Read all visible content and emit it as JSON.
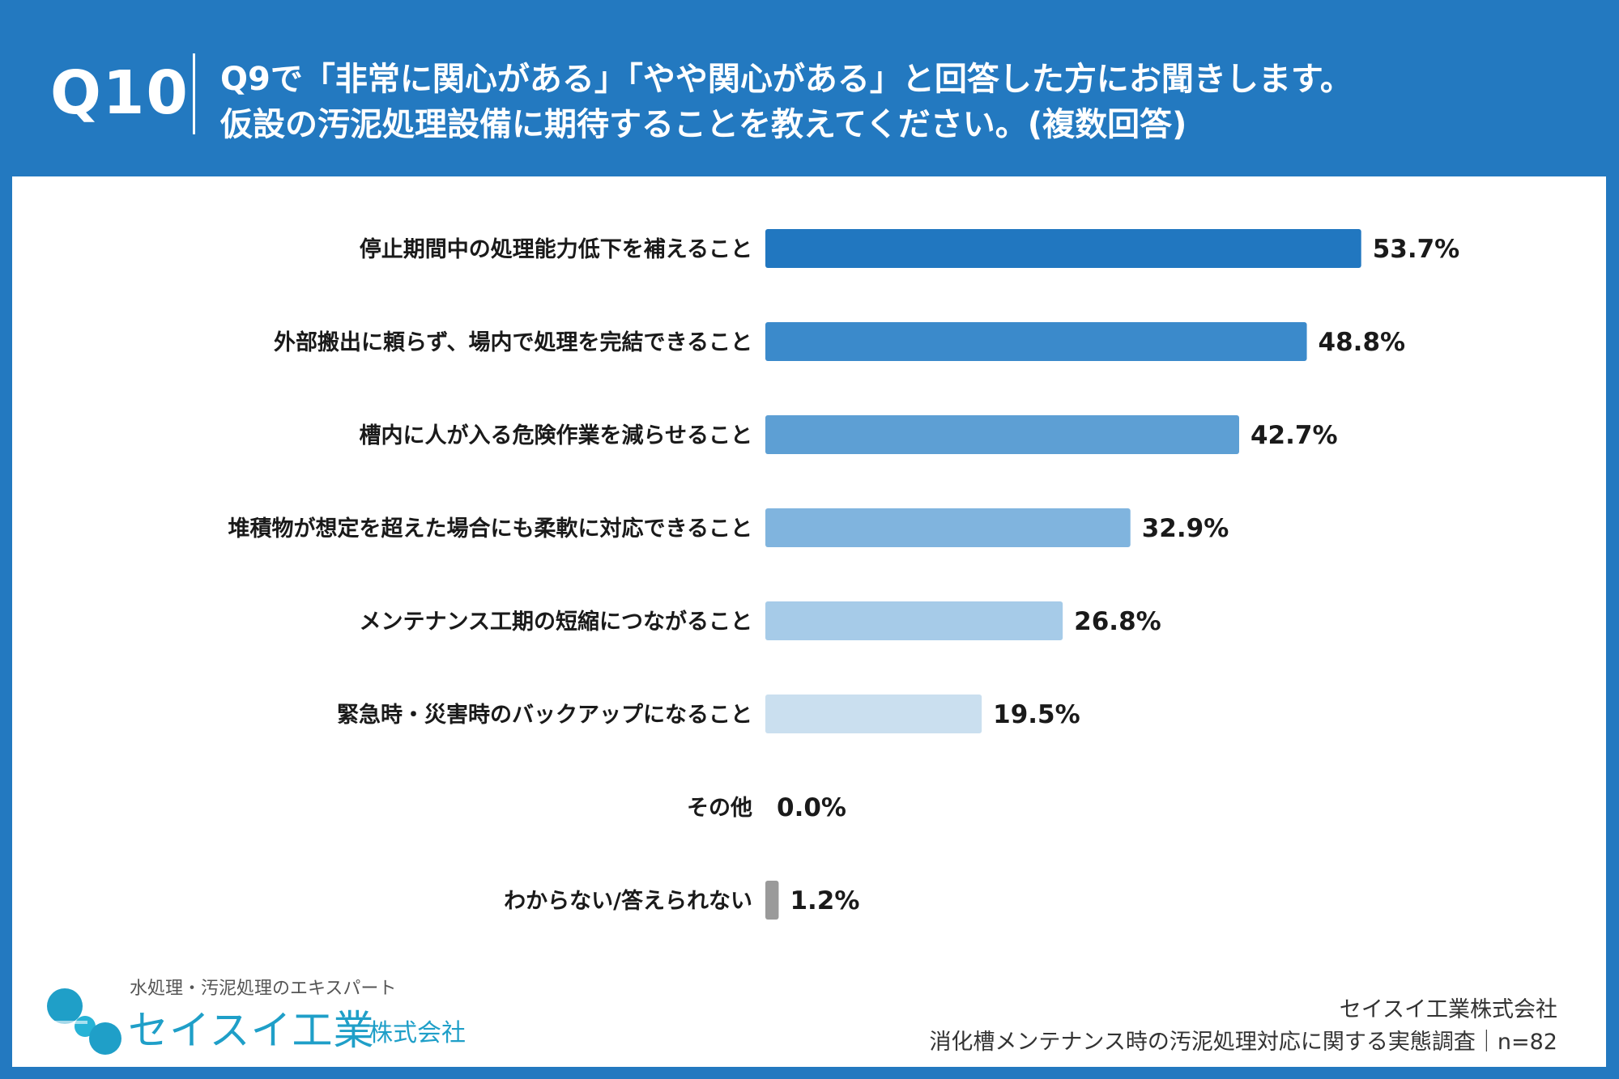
{
  "header": {
    "qnum": "Q10",
    "line1": "Q9で「非常に関心がある」「やや関心がある」と回答した方にお聞きします。",
    "line2": "仮設の汚泥処理設備に期待することを教えてください。(複数回答)"
  },
  "chart_data": {
    "type": "bar",
    "orientation": "horizontal",
    "categories": [
      "停止期間中の処理能力低下を補えること",
      "外部搬出に頼らず、場内で処理を完結できること",
      "槽内に人が入る危険作業を減らせること",
      "堆積物が想定を超えた場合にも柔軟に対応できること",
      "メンテナンス工期の短縮につながること",
      "緊急時・災害時のバックアップになること",
      "その他",
      "わからない/答えられない"
    ],
    "values": [
      53.7,
      48.8,
      42.7,
      32.9,
      26.8,
      19.5,
      0.0,
      1.2
    ],
    "value_labels": [
      "53.7%",
      "48.8%",
      "42.7%",
      "32.9%",
      "26.8%",
      "19.5%",
      "0.0%",
      "1.2%"
    ],
    "colors": [
      "#2177c0",
      "#3b8acb",
      "#5d9fd4",
      "#80b4de",
      "#a6cbe8",
      "#cadfef",
      "#cadfef",
      "#9a9a9a"
    ],
    "xlim": [
      0,
      100
    ],
    "grid": false,
    "legend": "none"
  },
  "logo": {
    "tagline": "水処理・汚泥処理のエキスパート",
    "name": "セイスイ工業",
    "corp": "株式会社",
    "icon": "bubbles-logo-icon"
  },
  "footer": {
    "company": "セイスイ工業株式会社",
    "survey": "消化槽メンテナンス時の汚泥処理対応に関する実態調査｜n=82"
  }
}
